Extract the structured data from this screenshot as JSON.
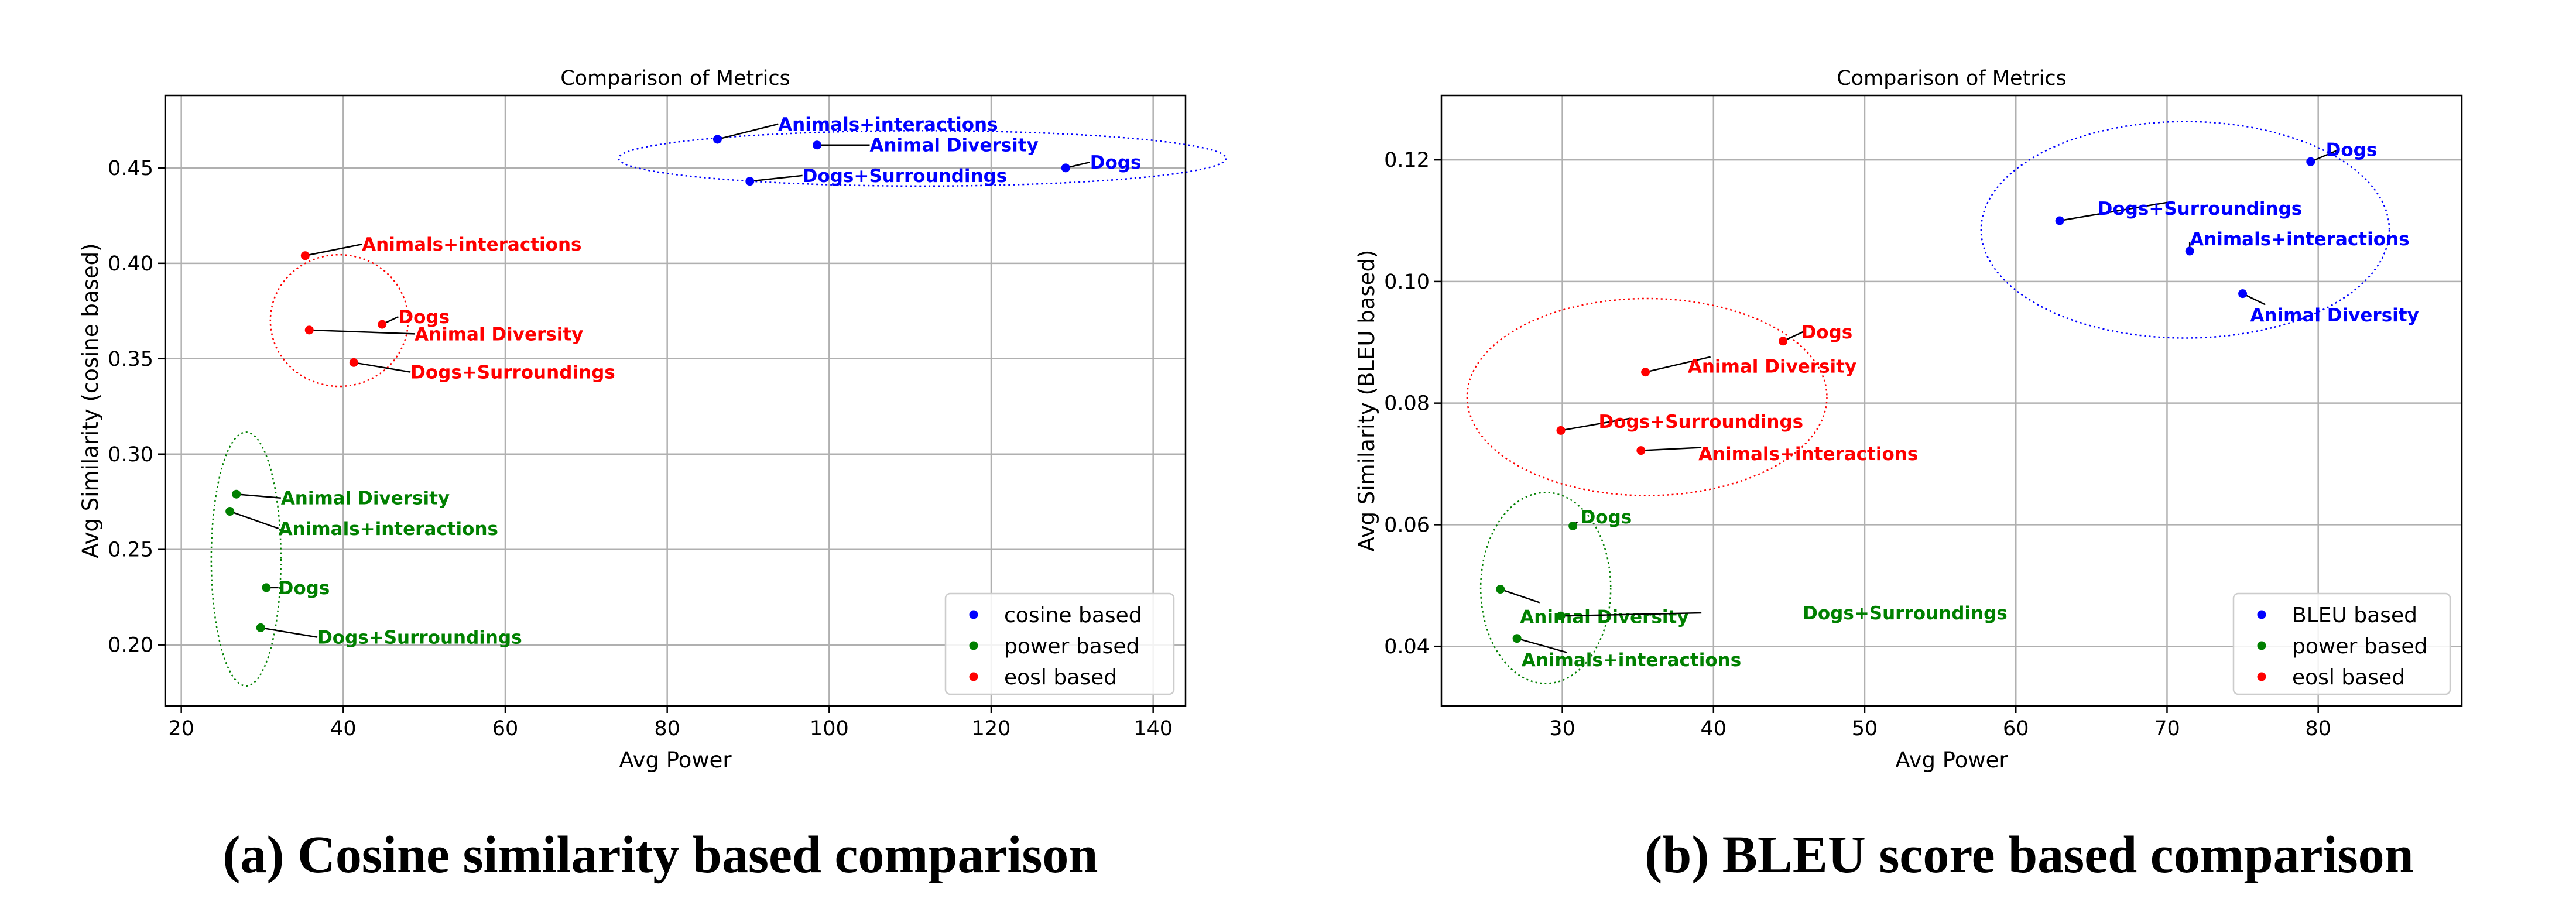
{
  "chart_data": [
    {
      "type": "scatter",
      "title": "Comparison of Metrics",
      "xlabel": "Avg Power",
      "ylabel": "Avg Similarity (cosine based)",
      "xlim": [
        18,
        144
      ],
      "ylim": [
        0.168,
        0.488
      ],
      "xticks": [
        20,
        40,
        60,
        80,
        100,
        120,
        140
      ],
      "xtick_labels": [
        "20",
        "40",
        "60",
        "80",
        "100",
        "120",
        "140"
      ],
      "yticks": [
        0.2,
        0.25,
        0.3,
        0.35,
        0.4,
        0.45
      ],
      "ytick_labels": [
        "0.20",
        "0.25",
        "0.30",
        "0.35",
        "0.40",
        "0.45"
      ],
      "grid": true,
      "legend_position": "lower-right",
      "caption": "(a) Cosine similarity based comparison",
      "series": [
        {
          "name": "cosine based",
          "color": "#0000ff",
          "points": [
            {
              "x": 86.2,
              "y": 0.465,
              "label": "Animals+interactions"
            },
            {
              "x": 98.5,
              "y": 0.462,
              "label": "Animal Diversity"
            },
            {
              "x": 90.2,
              "y": 0.443,
              "label": "Dogs+Surroundings"
            },
            {
              "x": 129.2,
              "y": 0.45,
              "label": "Dogs"
            }
          ]
        },
        {
          "name": "power based",
          "color": "#008000",
          "points": [
            {
              "x": 26.8,
              "y": 0.279,
              "label": "Animal Diversity"
            },
            {
              "x": 26.0,
              "y": 0.27,
              "label": "Animals+interactions"
            },
            {
              "x": 30.5,
              "y": 0.23,
              "label": "Dogs"
            },
            {
              "x": 29.8,
              "y": 0.209,
              "label": "Dogs+Surroundings"
            }
          ]
        },
        {
          "name": "eosl based",
          "color": "#ff0000",
          "points": [
            {
              "x": 35.3,
              "y": 0.404,
              "label": "Animals+interactions"
            },
            {
              "x": 44.8,
              "y": 0.368,
              "label": "Dogs"
            },
            {
              "x": 35.8,
              "y": 0.365,
              "label": "Animal Diversity"
            },
            {
              "x": 41.3,
              "y": 0.348,
              "label": "Dogs+Surroundings"
            }
          ]
        }
      ],
      "annotation_offsets": [
        [
          [
            7.5,
            0.008
          ],
          [
            6.5,
            0.0
          ],
          [
            6.5,
            0.003
          ],
          [
            3.0,
            0.003
          ]
        ],
        [
          [
            5.5,
            -0.002
          ],
          [
            6.0,
            -0.009
          ],
          [
            1.5,
            0.0
          ],
          [
            7.0,
            -0.005
          ]
        ],
        [
          [
            7.0,
            0.006
          ],
          [
            2.0,
            0.004
          ],
          [
            13.0,
            -0.002
          ],
          [
            7.0,
            -0.005
          ]
        ]
      ],
      "group_ellipses": [
        {
          "color": "#0000ff",
          "cx": 111.5,
          "cy": 0.455,
          "rx": 37.5,
          "ry": 0.0145
        },
        {
          "color": "#ff0000",
          "cx": 39.5,
          "cy": 0.37,
          "rx": 8.5,
          "ry": 0.0345
        },
        {
          "color": "#008000",
          "cx": 28.0,
          "cy": 0.245,
          "rx": 4.3,
          "ry": 0.0665
        }
      ]
    },
    {
      "type": "scatter",
      "title": "Comparison of Metrics",
      "xlabel": "Avg Power",
      "ylabel": "Avg Similarity (BLEU based)",
      "xlim": [
        22,
        89.5
      ],
      "ylim": [
        0.0302,
        0.1306
      ],
      "xticks": [
        30,
        40,
        50,
        60,
        70,
        80
      ],
      "xtick_labels": [
        "30",
        "40",
        "50",
        "60",
        "70",
        "80"
      ],
      "yticks": [
        0.04,
        0.06,
        0.08,
        0.1,
        0.12
      ],
      "ytick_labels": [
        "0.04",
        "0.06",
        "0.08",
        "0.10",
        "0.12"
      ],
      "grid": true,
      "legend_position": "lower-right",
      "caption": "(b) BLEU score based comparison",
      "series": [
        {
          "name": "BLEU based",
          "color": "#0000ff",
          "points": [
            {
              "x": 79.5,
              "y": 0.1197,
              "label": "Dogs"
            },
            {
              "x": 62.9,
              "y": 0.11,
              "label": "Dogs+Surroundings"
            },
            {
              "x": 71.5,
              "y": 0.105,
              "label": "Animals+interactions"
            },
            {
              "x": 75.0,
              "y": 0.098,
              "label": "Animal Diversity"
            }
          ]
        },
        {
          "name": "power based",
          "color": "#008000",
          "points": [
            {
              "x": 30.7,
              "y": 0.0598,
              "label": "Dogs"
            },
            {
              "x": 25.9,
              "y": 0.0494,
              "label": "Animal Diversity"
            },
            {
              "x": 29.9,
              "y": 0.045,
              "label": "Dogs+Surroundings"
            },
            {
              "x": 27.0,
              "y": 0.0413,
              "label": "Animals+interactions"
            }
          ]
        },
        {
          "name": "eosl based",
          "color": "#ff0000",
          "points": [
            {
              "x": 44.6,
              "y": 0.0902,
              "label": "Dogs"
            },
            {
              "x": 35.5,
              "y": 0.0851,
              "label": "Animal Diversity"
            },
            {
              "x": 29.9,
              "y": 0.0755,
              "label": "Dogs+Surroundings"
            },
            {
              "x": 35.2,
              "y": 0.0722,
              "label": "Animals+interactions"
            }
          ]
        }
      ],
      "annotation_offsets": [
        [
          [
            1.0,
            0.002
          ],
          [
            2.5,
            0.002
          ],
          [
            0.0,
            0.002
          ],
          [
            0.5,
            -0.0035
          ]
        ],
        [
          [
            0.5,
            0.0015
          ],
          [
            1.3,
            -0.0045
          ],
          [
            16.0,
            0.0005
          ],
          [
            0.3,
            -0.0035
          ]
        ],
        [
          [
            1.2,
            0.0015
          ],
          [
            2.8,
            0.001
          ],
          [
            2.5,
            0.0015
          ],
          [
            3.8,
            -0.0005
          ]
        ]
      ],
      "annotation_line_ends": [
        [
          [
            81.2,
            0.1215
          ],
          [
            70.0,
            0.113
          ],
          [
            71.5,
            0.1065
          ],
          [
            76.5,
            0.0962
          ]
        ],
        [
          [
            31.0,
            0.0605
          ],
          [
            28.5,
            0.0472
          ],
          [
            39.2,
            0.0455
          ],
          [
            30.3,
            0.039
          ]
        ],
        [
          [
            46.0,
            0.0918
          ],
          [
            39.8,
            0.0876
          ],
          [
            34.5,
            0.0775
          ],
          [
            39.2,
            0.0727
          ]
        ]
      ],
      "group_ellipses": [
        {
          "color": "#0000ff",
          "cx": 71.2,
          "cy": 0.1085,
          "rx": 13.5,
          "ry": 0.0178
        },
        {
          "color": "#ff0000",
          "cx": 35.6,
          "cy": 0.081,
          "rx": 11.9,
          "ry": 0.0162
        },
        {
          "color": "#008000",
          "cx": 28.9,
          "cy": 0.0496,
          "rx": 4.3,
          "ry": 0.0157
        }
      ]
    }
  ]
}
